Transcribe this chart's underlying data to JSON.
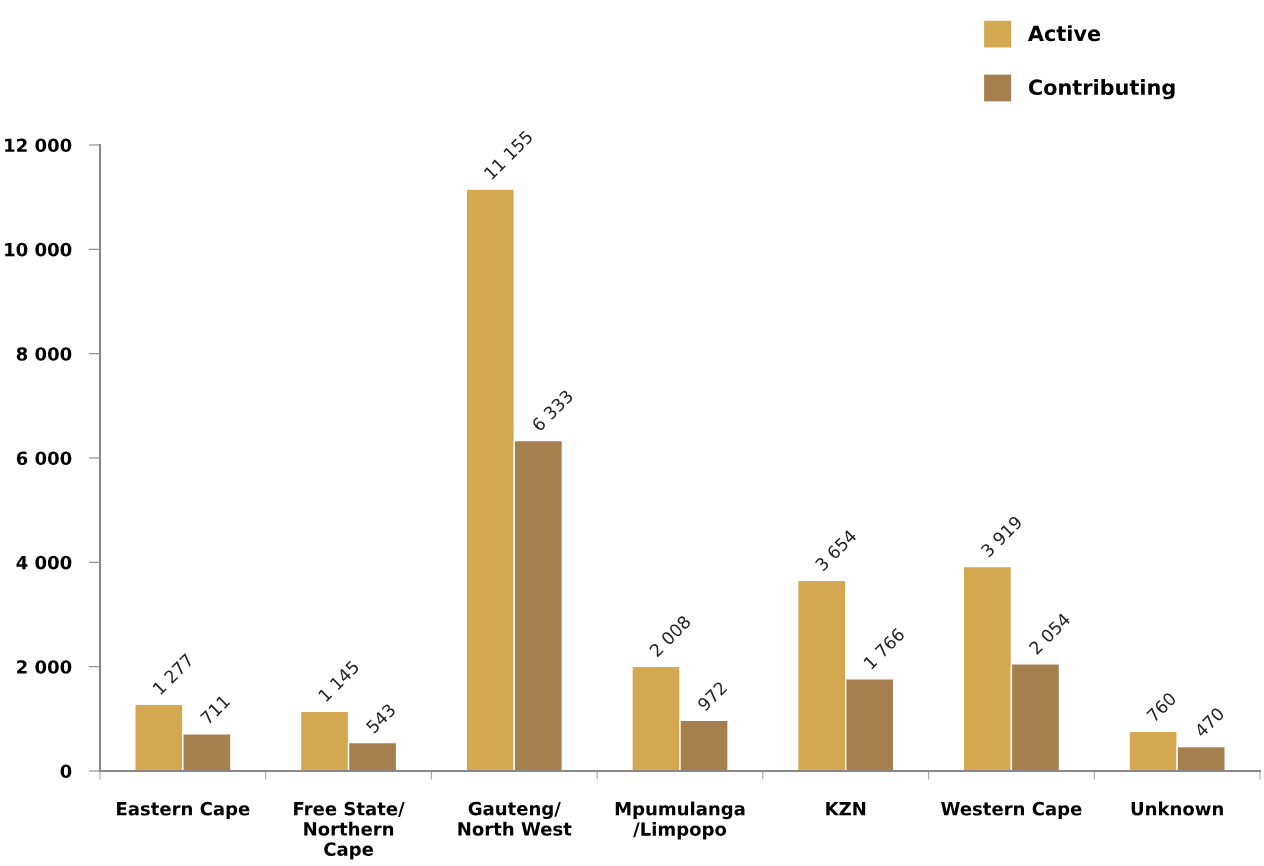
{
  "chart_data": {
    "type": "bar",
    "categories": [
      "Eastern Cape",
      "Free State/\nNorthern\nCape",
      "Gauteng/\nNorth West",
      "Mpumulanga\n/Limpopo",
      "KZN",
      "Western Cape",
      "Unknown"
    ],
    "series": [
      {
        "name": "Active",
        "color": "#d4a850",
        "values": [
          1277,
          1145,
          11155,
          2008,
          3654,
          3919,
          760
        ],
        "value_labels": [
          "1 277",
          "1 145",
          "11 155",
          "2 008",
          "3 654",
          "3 919",
          "760"
        ]
      },
      {
        "name": "Contributing",
        "color": "#a57f4e",
        "values": [
          711,
          543,
          6333,
          972,
          1766,
          2054,
          470
        ],
        "value_labels": [
          "711",
          "543",
          "6 333",
          "972",
          "1 766",
          "2 054",
          "470"
        ]
      }
    ],
    "ylim": [
      0,
      12000
    ],
    "yticks": [
      {
        "value": 0,
        "label": "0"
      },
      {
        "value": 2000,
        "label": "2 000"
      },
      {
        "value": 4000,
        "label": "4 000"
      },
      {
        "value": 6000,
        "label": "6 000"
      },
      {
        "value": 8000,
        "label": "8 000"
      },
      {
        "value": 10000,
        "label": "10 000"
      },
      {
        "value": 12000,
        "label": "12 000"
      }
    ],
    "grid": false,
    "legend": "top right"
  }
}
